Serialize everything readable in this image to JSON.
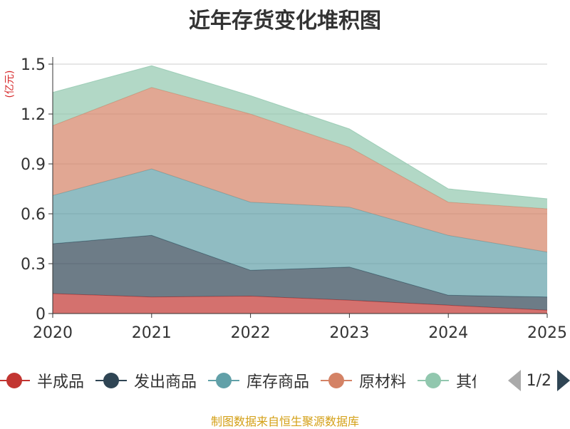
{
  "chart_data": {
    "type": "area",
    "stacked": true,
    "title": "近年存货变化堆积图",
    "ylabel": "(亿元)",
    "xlabel": "",
    "x": [
      "2020",
      "2021",
      "2022",
      "2023",
      "2024",
      "2025"
    ],
    "ylim": [
      0,
      1.5
    ],
    "yticks": [
      "0",
      "0.3",
      "0.6",
      "0.9",
      "1.2",
      "1.5"
    ],
    "series": [
      {
        "name": "半成品",
        "color": "#c23531",
        "values": [
          0.12,
          0.1,
          0.105,
          0.08,
          0.05,
          0.02
        ]
      },
      {
        "name": "发出商品",
        "color": "#2f4554",
        "values": [
          0.3,
          0.37,
          0.155,
          0.2,
          0.06,
          0.08
        ]
      },
      {
        "name": "库存商品",
        "color": "#61a0a8",
        "values": [
          0.29,
          0.4,
          0.41,
          0.36,
          0.36,
          0.27
        ]
      },
      {
        "name": "原材料",
        "color": "#d48265",
        "values": [
          0.42,
          0.49,
          0.53,
          0.36,
          0.2,
          0.26
        ]
      },
      {
        "name": "其他",
        "color": "#91c7ae",
        "values": [
          0.2,
          0.13,
          0.11,
          0.11,
          0.08,
          0.06
        ]
      }
    ]
  },
  "legend": {
    "page_indicator": "1/2"
  },
  "source_note": "制图数据来自恒生聚源数据库"
}
